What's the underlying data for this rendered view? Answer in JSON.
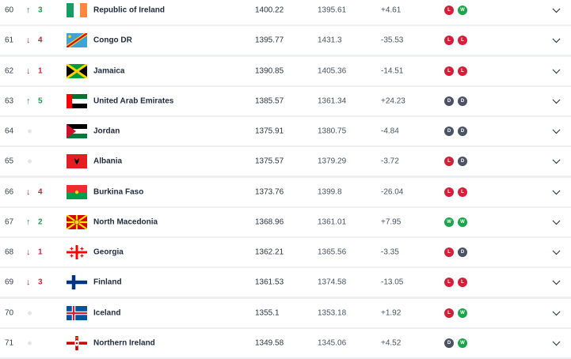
{
  "result_colors": {
    "W": "#1aa54a",
    "L": "#d41f3a",
    "D": "#4a5263"
  },
  "rows": [
    {
      "rank": "60",
      "move": "up",
      "delta": "3",
      "flag": "ireland",
      "country": "Republic of Ireland",
      "points": "1400.22",
      "previous": "1395.61",
      "diff": "+4.61",
      "results": [
        "L",
        "W"
      ]
    },
    {
      "rank": "61",
      "move": "down",
      "delta": "4",
      "flag": "congo-dr",
      "country": "Congo DR",
      "points": "1395.77",
      "previous": "1431.3",
      "diff": "-35.53",
      "results": [
        "L",
        "L"
      ]
    },
    {
      "rank": "62",
      "move": "down",
      "delta": "1",
      "flag": "jamaica",
      "country": "Jamaica",
      "points": "1390.85",
      "previous": "1405.36",
      "diff": "-14.51",
      "results": [
        "L",
        "L"
      ]
    },
    {
      "rank": "63",
      "move": "up",
      "delta": "5",
      "flag": "uae",
      "country": "United Arab Emirates",
      "points": "1385.57",
      "previous": "1361.34",
      "diff": "+24.23",
      "results": [
        "D",
        "D"
      ]
    },
    {
      "rank": "64",
      "move": "none",
      "delta": "",
      "flag": "jordan",
      "country": "Jordan",
      "points": "1375.91",
      "previous": "1380.75",
      "diff": "-4.84",
      "results": [
        "D",
        "D"
      ]
    },
    {
      "rank": "65",
      "move": "none",
      "delta": "",
      "flag": "albania",
      "country": "Albania",
      "points": "1375.57",
      "previous": "1379.29",
      "diff": "-3.72",
      "results": [
        "L",
        "D"
      ]
    },
    {
      "rank": "66",
      "move": "down",
      "delta": "4",
      "flag": "burkina-faso",
      "country": "Burkina Faso",
      "points": "1373.76",
      "previous": "1399.8",
      "diff": "-26.04",
      "results": [
        "L",
        "L"
      ]
    },
    {
      "rank": "67",
      "move": "up",
      "delta": "2",
      "flag": "north-macedonia",
      "country": "North Macedonia",
      "points": "1368.96",
      "previous": "1361.01",
      "diff": "+7.95",
      "results": [
        "W",
        "W"
      ]
    },
    {
      "rank": "68",
      "move": "down",
      "delta": "1",
      "flag": "georgia",
      "country": "Georgia",
      "points": "1362.21",
      "previous": "1365.56",
      "diff": "-3.35",
      "results": [
        "L",
        "D"
      ]
    },
    {
      "rank": "69",
      "move": "down",
      "delta": "3",
      "flag": "finland",
      "country": "Finland",
      "points": "1361.53",
      "previous": "1374.58",
      "diff": "-13.05",
      "results": [
        "L",
        "L"
      ]
    },
    {
      "rank": "70",
      "move": "none",
      "delta": "",
      "flag": "iceland",
      "country": "Iceland",
      "points": "1355.1",
      "previous": "1353.18",
      "diff": "+1.92",
      "results": [
        "L",
        "W"
      ]
    },
    {
      "rank": "71",
      "move": "none",
      "delta": "",
      "flag": "northern-ireland",
      "country": "Northern Ireland",
      "points": "1349.58",
      "previous": "1345.06",
      "diff": "+4.52",
      "results": [
        "D",
        "W"
      ]
    }
  ]
}
